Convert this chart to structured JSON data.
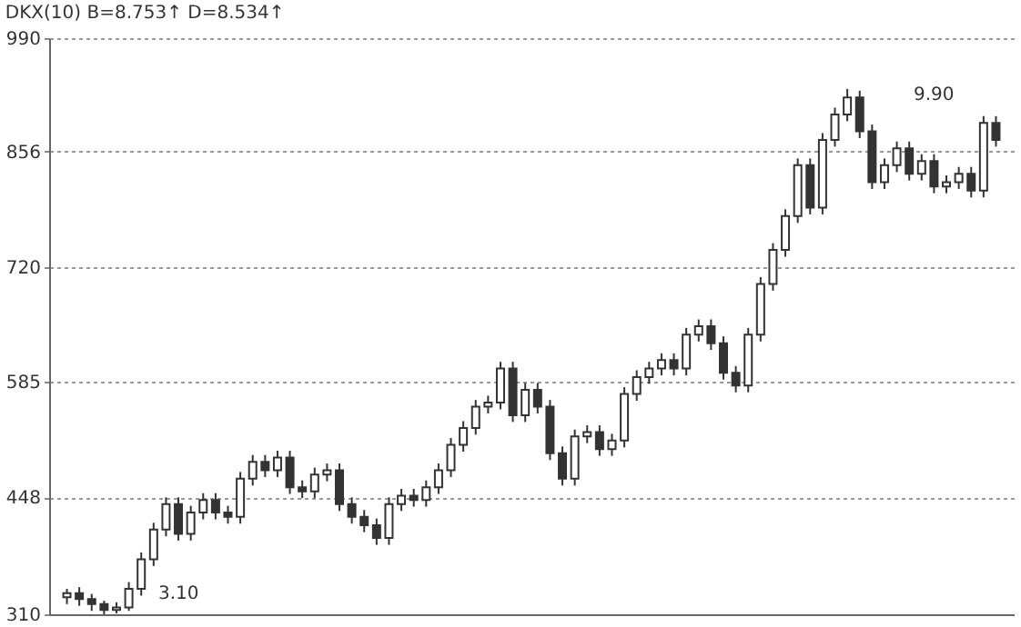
{
  "chart_data": {
    "type": "candlestick",
    "subtitle": "DKX(10)  B=8.753↑  D=8.534↑",
    "categories": [
      null,
      null,
      null,
      null,
      null,
      null,
      null,
      null,
      null,
      null,
      null,
      null,
      null,
      null,
      null,
      null,
      null,
      null,
      null,
      null,
      null,
      null,
      null,
      null,
      null,
      null,
      null,
      null,
      null,
      null,
      null,
      null,
      null,
      null,
      null,
      null,
      null,
      null,
      null,
      null,
      null,
      null,
      null,
      null,
      null,
      null,
      null,
      null,
      null,
      null,
      null,
      null,
      null,
      null,
      null,
      null,
      null,
      null,
      null,
      null,
      null,
      null,
      null,
      null,
      null,
      null,
      null,
      null,
      null,
      null,
      null,
      null,
      null,
      null,
      null,
      null
    ],
    "ohlc": [
      [
        330,
        340,
        322,
        335
      ],
      [
        335,
        342,
        320,
        328
      ],
      [
        328,
        334,
        314,
        322
      ],
      [
        322,
        326,
        310,
        315
      ],
      [
        315,
        324,
        311,
        318
      ],
      [
        318,
        348,
        314,
        340
      ],
      [
        340,
        383,
        332,
        375
      ],
      [
        375,
        418,
        367,
        410
      ],
      [
        410,
        448,
        402,
        440
      ],
      [
        440,
        448,
        397,
        405
      ],
      [
        405,
        438,
        397,
        430
      ],
      [
        430,
        453,
        422,
        445
      ],
      [
        445,
        453,
        422,
        430
      ],
      [
        430,
        438,
        417,
        425
      ],
      [
        425,
        478,
        417,
        470
      ],
      [
        470,
        498,
        462,
        490
      ],
      [
        490,
        498,
        472,
        480
      ],
      [
        480,
        503,
        472,
        495
      ],
      [
        495,
        503,
        452,
        460
      ],
      [
        460,
        468,
        447,
        455
      ],
      [
        455,
        483,
        447,
        475
      ],
      [
        475,
        488,
        467,
        480
      ],
      [
        480,
        488,
        432,
        440
      ],
      [
        440,
        448,
        417,
        425
      ],
      [
        425,
        433,
        407,
        415
      ],
      [
        415,
        423,
        392,
        400
      ],
      [
        400,
        448,
        392,
        440
      ],
      [
        440,
        458,
        432,
        450
      ],
      [
        450,
        458,
        437,
        445
      ],
      [
        445,
        468,
        437,
        460
      ],
      [
        460,
        488,
        452,
        480
      ],
      [
        480,
        518,
        472,
        510
      ],
      [
        510,
        538,
        502,
        530
      ],
      [
        530,
        563,
        522,
        555
      ],
      [
        555,
        568,
        547,
        560
      ],
      [
        560,
        608,
        552,
        600
      ],
      [
        600,
        608,
        537,
        545
      ],
      [
        545,
        583,
        537,
        575
      ],
      [
        575,
        583,
        547,
        555
      ],
      [
        555,
        563,
        492,
        500
      ],
      [
        500,
        508,
        462,
        470
      ],
      [
        470,
        528,
        462,
        520
      ],
      [
        520,
        533,
        512,
        525
      ],
      [
        525,
        533,
        497,
        505
      ],
      [
        505,
        523,
        497,
        515
      ],
      [
        515,
        578,
        507,
        570
      ],
      [
        570,
        598,
        562,
        590
      ],
      [
        590,
        608,
        582,
        600
      ],
      [
        600,
        618,
        592,
        610
      ],
      [
        610,
        618,
        592,
        600
      ],
      [
        600,
        648,
        592,
        640
      ],
      [
        640,
        658,
        632,
        650
      ],
      [
        650,
        658,
        622,
        630
      ],
      [
        630,
        638,
        587,
        595
      ],
      [
        595,
        603,
        572,
        580
      ],
      [
        580,
        648,
        572,
        640
      ],
      [
        640,
        708,
        632,
        700
      ],
      [
        700,
        748,
        692,
        740
      ],
      [
        740,
        788,
        732,
        780
      ],
      [
        780,
        848,
        772,
        840
      ],
      [
        840,
        848,
        782,
        790
      ],
      [
        790,
        878,
        782,
        870
      ],
      [
        870,
        908,
        862,
        900
      ],
      [
        900,
        930,
        892,
        920
      ],
      [
        920,
        928,
        872,
        880
      ],
      [
        880,
        888,
        812,
        820
      ],
      [
        820,
        848,
        812,
        840
      ],
      [
        840,
        868,
        832,
        860
      ],
      [
        860,
        868,
        822,
        830
      ],
      [
        830,
        853,
        822,
        845
      ],
      [
        845,
        853,
        807,
        815
      ],
      [
        815,
        828,
        807,
        820
      ],
      [
        820,
        838,
        812,
        830
      ],
      [
        830,
        838,
        802,
        810
      ],
      [
        810,
        898,
        802,
        890
      ],
      [
        890,
        898,
        862,
        870
      ]
    ],
    "color": "#333333",
    "ylim": [
      310,
      990
    ],
    "yticks": [
      310,
      448,
      585,
      720,
      856,
      990
    ],
    "grid": "y",
    "tick_labels": "y",
    "annotations": [
      "3.10",
      "9.90"
    ]
  }
}
